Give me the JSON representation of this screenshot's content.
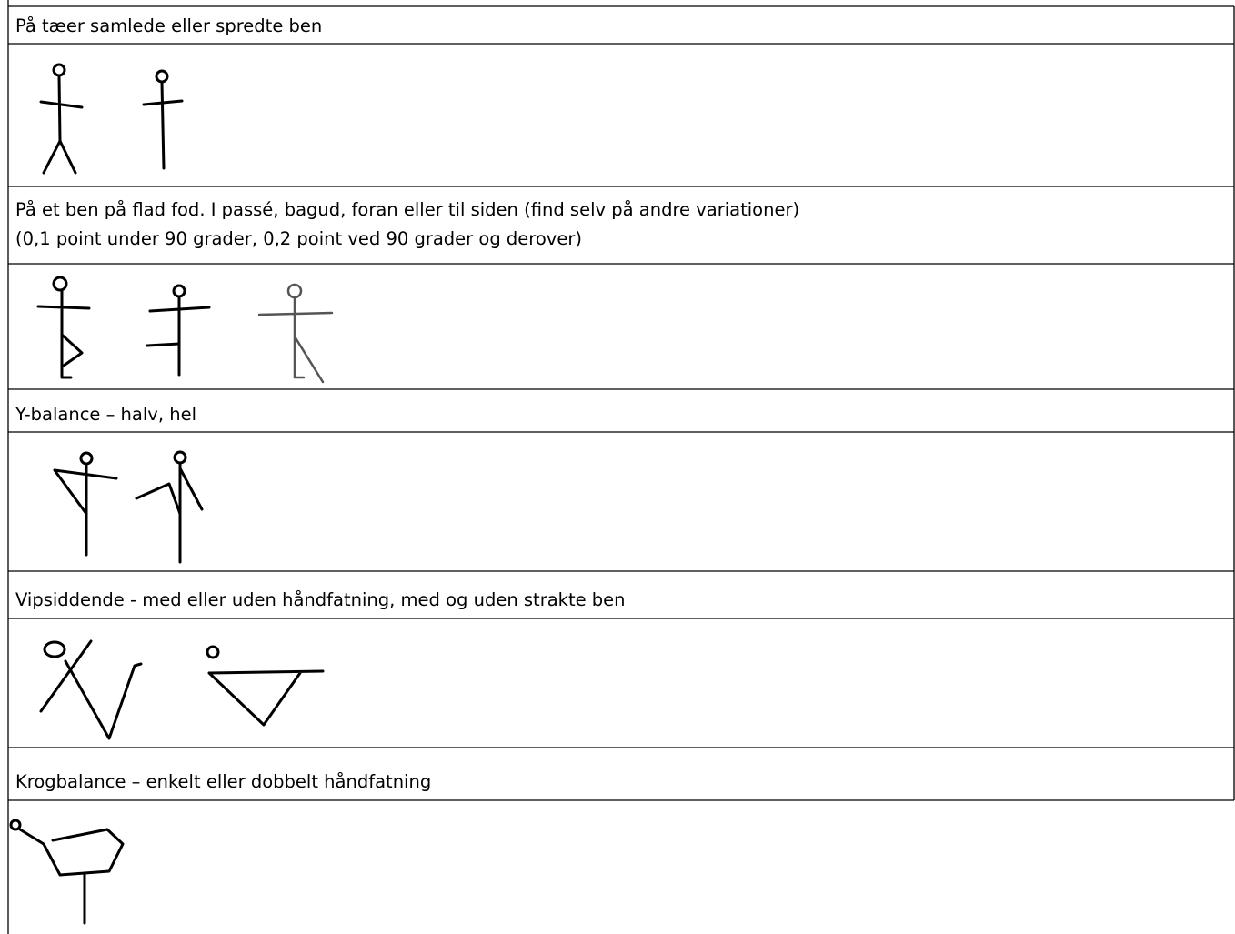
{
  "table": {
    "rows": [
      [
        "På tæer samlede eller spredte ben"
      ],
      [
        "På et ben på flad fod. I passé, bagud, foran eller til siden (find selv på andre variationer)",
        "(0,1 point under 90 grader, 0,2 point ved 90 grader og derover)"
      ],
      [
        "Y-balance – halv, hel"
      ],
      [
        "Vipsiddende - med eller uden håndfatning, med og uden strakte ben"
      ],
      [
        "Krogbalance – enkelt eller dobbelt håndfatning"
      ]
    ]
  }
}
